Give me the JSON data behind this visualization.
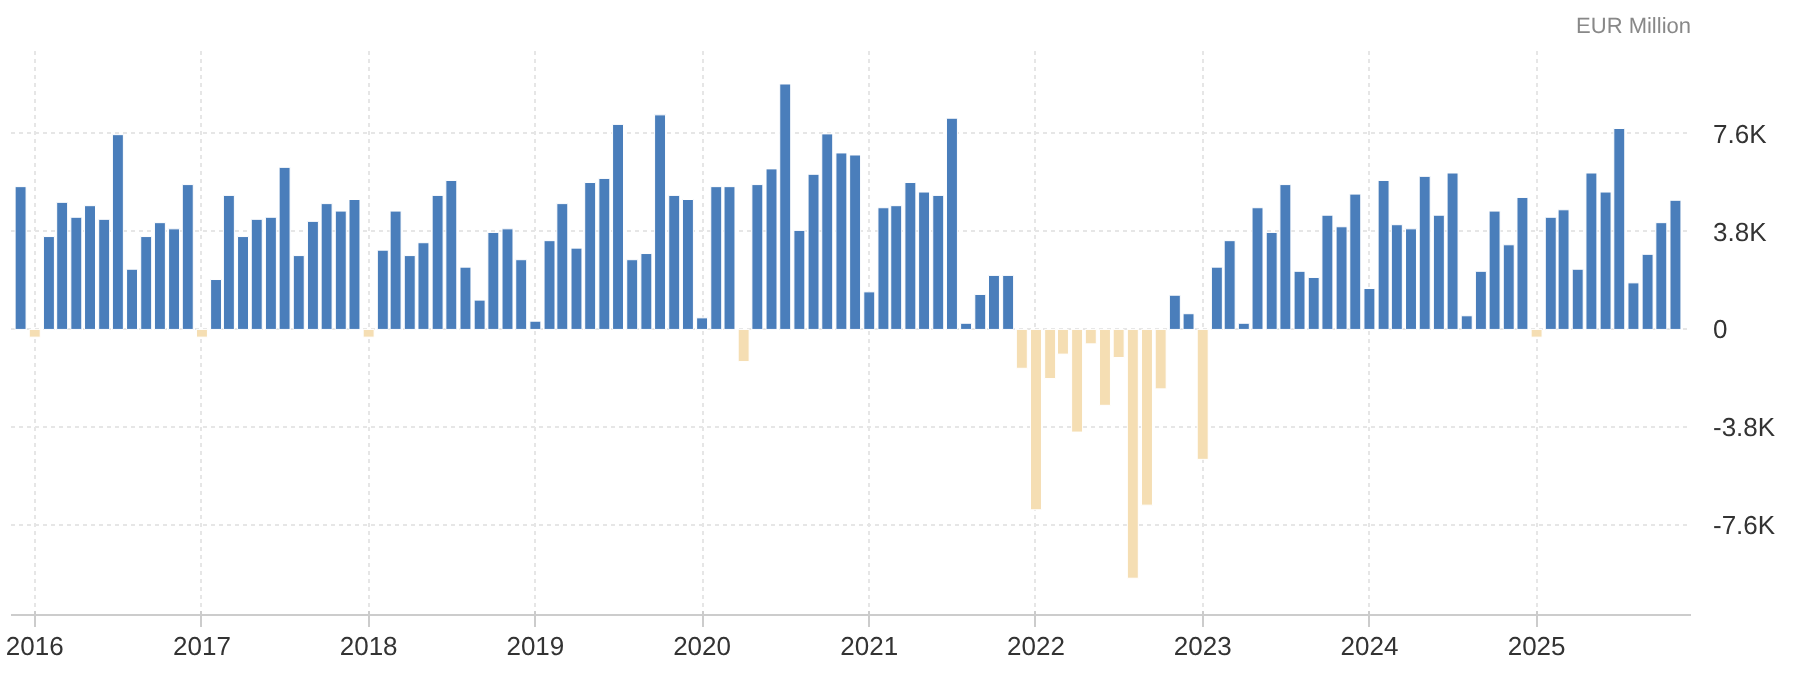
{
  "chart_data": {
    "type": "bar",
    "annotations": [
      "EUR Million"
    ],
    "x": [
      "2015-12",
      "2016-01",
      "2016-02",
      "2016-03",
      "2016-04",
      "2016-05",
      "2016-06",
      "2016-07",
      "2016-08",
      "2016-09",
      "2016-10",
      "2016-11",
      "2016-12",
      "2017-01",
      "2017-02",
      "2017-03",
      "2017-04",
      "2017-05",
      "2017-06",
      "2017-07",
      "2017-08",
      "2017-09",
      "2017-10",
      "2017-11",
      "2017-12",
      "2018-01",
      "2018-02",
      "2018-03",
      "2018-04",
      "2018-05",
      "2018-06",
      "2018-07",
      "2018-08",
      "2018-09",
      "2018-10",
      "2018-11",
      "2018-12",
      "2019-01",
      "2019-02",
      "2019-03",
      "2019-04",
      "2019-05",
      "2019-06",
      "2019-07",
      "2019-08",
      "2019-09",
      "2019-10",
      "2019-11",
      "2019-12",
      "2020-01",
      "2020-02",
      "2020-03",
      "2020-04",
      "2020-05",
      "2020-06",
      "2020-07",
      "2020-08",
      "2020-09",
      "2020-10",
      "2020-11",
      "2020-12",
      "2021-01",
      "2021-02",
      "2021-03",
      "2021-04",
      "2021-05",
      "2021-06",
      "2021-07",
      "2021-08",
      "2021-09",
      "2021-10",
      "2021-11",
      "2021-12",
      "2022-01",
      "2022-02",
      "2022-03",
      "2022-04",
      "2022-05",
      "2022-06",
      "2022-07",
      "2022-08",
      "2022-09",
      "2022-10",
      "2022-11",
      "2022-12",
      "2023-01",
      "2023-02",
      "2023-03",
      "2023-04",
      "2023-05",
      "2023-06",
      "2023-07",
      "2023-08",
      "2023-09",
      "2023-10",
      "2023-11",
      "2023-12",
      "2024-01",
      "2024-02",
      "2024-03",
      "2024-04",
      "2024-05",
      "2024-06",
      "2024-07",
      "2024-08",
      "2024-09",
      "2024-10",
      "2024-11",
      "2024-12",
      "2025-01",
      "2025-02",
      "2025-03",
      "2025-04",
      "2025-05",
      "2025-06",
      "2025-07",
      "2025-08",
      "2025-09",
      "2025-10",
      "2025-11"
    ],
    "values": [
      5550,
      -300,
      3610,
      4940,
      4360,
      4810,
      4280,
      7570,
      2340,
      3610,
      4150,
      3910,
      5630,
      -300,
      1940,
      5210,
      3610,
      4280,
      4360,
      6300,
      2870,
      4200,
      4890,
      4600,
      5050,
      -300,
      3080,
      4600,
      2870,
      3370,
      5210,
      5790,
      2420,
      1140,
      3770,
      3910,
      2710,
      320,
      3450,
      4890,
      3160,
      5710,
      5870,
      7970,
      2710,
      2950,
      8340,
      5210,
      5050,
      450,
      5550,
      5550,
      -1250,
      5630,
      6240,
      9540,
      3850,
      6030,
      7600,
      6860,
      6780,
      1460,
      4730,
      4810,
      5710,
      5340,
      5210,
      8210,
      240,
      1360,
      2100,
      2100,
      -1510,
      -7010,
      -1910,
      -960,
      -3990,
      -560,
      -2950,
      -1090,
      -9670,
      -6830,
      -2310,
      1330,
      610,
      -5050,
      2420,
      3450,
      240,
      4730,
      3770,
      5630,
      2260,
      2020,
      4440,
      3990,
      5260,
      1590,
      5790,
      4070,
      3910,
      5950,
      4440,
      6080,
      530,
      2260,
      4600,
      3290,
      5130,
      -300,
      4360,
      4650,
      2340,
      6080,
      5340,
      7810,
      1810,
      2920,
      4150,
      5020
    ],
    "colors": [
      "#4a7ebb",
      "#f5deb3",
      "#4a7ebb",
      "#4a7ebb",
      "#4a7ebb",
      "#4a7ebb",
      "#4a7ebb",
      "#4a7ebb",
      "#4a7ebb",
      "#4a7ebb",
      "#4a7ebb",
      "#4a7ebb",
      "#4a7ebb",
      "#f5deb3",
      "#4a7ebb",
      "#4a7ebb",
      "#4a7ebb",
      "#4a7ebb",
      "#4a7ebb",
      "#4a7ebb",
      "#4a7ebb",
      "#4a7ebb",
      "#4a7ebb",
      "#4a7ebb",
      "#4a7ebb",
      "#f5deb3",
      "#4a7ebb",
      "#4a7ebb",
      "#4a7ebb",
      "#4a7ebb",
      "#4a7ebb",
      "#4a7ebb",
      "#4a7ebb",
      "#4a7ebb",
      "#4a7ebb",
      "#4a7ebb",
      "#4a7ebb",
      "#4a7ebb",
      "#4a7ebb",
      "#4a7ebb",
      "#4a7ebb",
      "#4a7ebb",
      "#4a7ebb",
      "#4a7ebb",
      "#4a7ebb",
      "#4a7ebb",
      "#4a7ebb",
      "#4a7ebb",
      "#4a7ebb",
      "#4a7ebb",
      "#4a7ebb",
      "#4a7ebb",
      "#f5deb3",
      "#4a7ebb",
      "#4a7ebb",
      "#4a7ebb",
      "#4a7ebb",
      "#4a7ebb",
      "#4a7ebb",
      "#4a7ebb",
      "#4a7ebb",
      "#4a7ebb",
      "#4a7ebb",
      "#4a7ebb",
      "#4a7ebb",
      "#4a7ebb",
      "#4a7ebb",
      "#4a7ebb",
      "#4a7ebb",
      "#4a7ebb",
      "#4a7ebb",
      "#4a7ebb",
      "#f5deb3",
      "#f5deb3",
      "#f5deb3",
      "#f5deb3",
      "#f5deb3",
      "#f5deb3",
      "#f5deb3",
      "#f5deb3",
      "#f5deb3",
      "#f5deb3",
      "#f5deb3",
      "#4a7ebb",
      "#4a7ebb",
      "#f5deb3",
      "#4a7ebb",
      "#4a7ebb",
      "#4a7ebb",
      "#4a7ebb",
      "#4a7ebb",
      "#4a7ebb",
      "#4a7ebb",
      "#4a7ebb",
      "#4a7ebb",
      "#4a7ebb",
      "#4a7ebb",
      "#4a7ebb",
      "#4a7ebb",
      "#4a7ebb",
      "#4a7ebb",
      "#4a7ebb",
      "#4a7ebb",
      "#4a7ebb",
      "#4a7ebb",
      "#4a7ebb",
      "#4a7ebb",
      "#4a7ebb",
      "#4a7ebb",
      "#f5deb3",
      "#4a7ebb",
      "#4a7ebb",
      "#4a7ebb",
      "#4a7ebb",
      "#4a7ebb",
      "#4a7ebb",
      "#4a7ebb",
      "#4a7ebb",
      "#4a7ebb",
      "#4a7ebb"
    ],
    "xlim": [
      "2015-11-10",
      "2025-12-05"
    ],
    "xticks": [
      {
        "value": "2016-01",
        "label": "2016"
      },
      {
        "value": "2017-01",
        "label": "2017"
      },
      {
        "value": "2018-01",
        "label": "2018"
      },
      {
        "value": "2019-01",
        "label": "2019"
      },
      {
        "value": "2020-01",
        "label": "2020"
      },
      {
        "value": "2021-01",
        "label": "2021"
      },
      {
        "value": "2022-01",
        "label": "2022"
      },
      {
        "value": "2023-01",
        "label": "2023"
      },
      {
        "value": "2024-01",
        "label": "2024"
      },
      {
        "value": "2025-01",
        "label": "2025"
      }
    ],
    "ylim": [
      -11100,
      10900
    ],
    "yticks": [
      {
        "value": -7600,
        "label": "-7.6K"
      },
      {
        "value": -3800,
        "label": "-3.8K"
      },
      0,
      {
        "value": 3800,
        "label": "3.8K"
      },
      {
        "value": 7600,
        "label": "7.6K"
      }
    ],
    "grid": true
  }
}
